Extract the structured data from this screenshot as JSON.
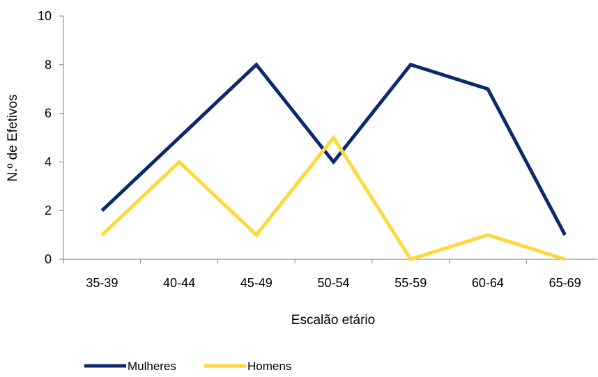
{
  "chart_data": {
    "type": "line",
    "title": "",
    "xlabel": "Escalão etário",
    "ylabel": "N.º de Efetivos",
    "categories": [
      "35-39",
      "40-44",
      "45-49",
      "50-54",
      "55-59",
      "60-64",
      "65-69"
    ],
    "ylim": [
      0,
      10
    ],
    "yticks": [
      "0",
      "2",
      "4",
      "6",
      "8",
      "10"
    ],
    "grid": false,
    "legend_position": "bottom-left",
    "series": [
      {
        "name": "Mulheres",
        "values": [
          2,
          5,
          8,
          4,
          8,
          7,
          1
        ],
        "color": "#0b2a6e"
      },
      {
        "name": "Homens",
        "values": [
          1,
          4,
          1,
          5,
          0,
          1,
          0
        ],
        "color": "#ffd93b"
      }
    ]
  }
}
